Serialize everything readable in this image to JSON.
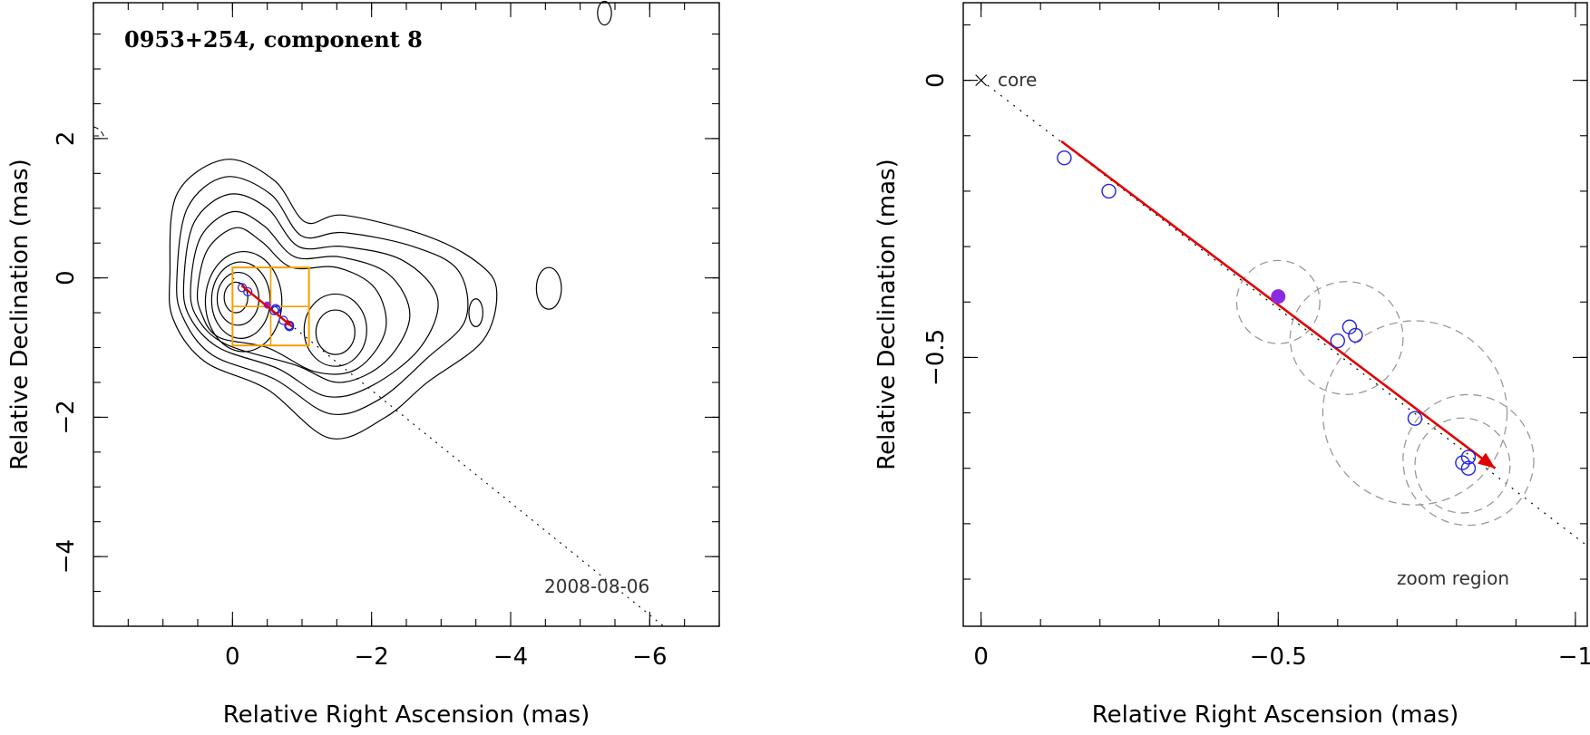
{
  "chart_data": [
    {
      "type": "contour",
      "title": "0953+254, component 8",
      "xlabel": "Relative Right Ascension (mas)",
      "ylabel": "Relative Declination (mas)",
      "xlim": [
        2.0,
        -7.0
      ],
      "ylim": [
        -5.0,
        3.95
      ],
      "x_ticks": [
        0,
        -2,
        -4,
        -6
      ],
      "y_ticks": [
        2,
        0,
        -2,
        -4
      ],
      "epoch_label": "2008-08-06",
      "contours": [
        {
          "cx": -0.05,
          "cy": -0.28,
          "rx": 0.17,
          "ry": 0.22
        },
        {
          "cx": -0.08,
          "cy": -0.3,
          "rx": 0.3,
          "ry": 0.38
        },
        {
          "cx": -0.12,
          "cy": -0.32,
          "rx": 0.42,
          "ry": 0.55
        },
        {
          "cx": -0.16,
          "cy": -0.34,
          "rx": 0.55,
          "ry": 0.72
        },
        {
          "cx": -1.48,
          "cy": -0.78,
          "rx": 0.28,
          "ry": 0.32
        },
        {
          "cx": -1.48,
          "cy": -0.75,
          "rx": 0.45,
          "ry": 0.52
        },
        {
          "cx": -3.5,
          "cy": -0.5,
          "rx": 0.1,
          "ry": 0.2
        },
        {
          "cx": -4.55,
          "cy": -0.15,
          "rx": 0.18,
          "ry": 0.3
        },
        {
          "cx": -5.35,
          "cy": 3.8,
          "rx": 0.1,
          "ry": 0.17
        }
      ],
      "boxes": [
        [
          0,
          0.15,
          -1.1,
          -0.97
        ]
      ],
      "arrow": {
        "from": [
          -0.13,
          -0.11
        ],
        "to": [
          -0.86,
          -0.7
        ]
      },
      "points": [
        [
          -0.14,
          -0.14
        ],
        [
          -0.22,
          -0.2
        ],
        [
          -0.6,
          -0.47
        ],
        [
          -0.62,
          -0.44
        ],
        [
          -0.63,
          -0.46
        ],
        [
          -0.73,
          -0.61
        ],
        [
          -0.81,
          -0.69
        ],
        [
          -0.82,
          -0.68
        ],
        [
          -0.82,
          -0.7
        ]
      ],
      "filled_point": [
        -0.5,
        -0.39
      ]
    },
    {
      "type": "scatter",
      "xlabel": "Relative Right Ascension (mas)",
      "ylabel": "Relative Declination (mas)",
      "xlim": [
        0.03,
        -1.02
      ],
      "ylim": [
        -0.985,
        0.14
      ],
      "x_ticks": [
        0,
        -0.5,
        -1
      ],
      "x_tick_labels": [
        "0",
        "−0.5",
        "−1"
      ],
      "y_ticks": [
        0,
        -0.5
      ],
      "y_tick_labels": [
        "0",
        "−0.5"
      ],
      "core_label": "core",
      "zoom_label": "zoom region",
      "points": [
        [
          -0.14,
          -0.14
        ],
        [
          -0.215,
          -0.2
        ],
        [
          -0.6,
          -0.47
        ],
        [
          -0.62,
          -0.445
        ],
        [
          -0.63,
          -0.46
        ],
        [
          -0.73,
          -0.61
        ],
        [
          -0.81,
          -0.69
        ],
        [
          -0.82,
          -0.68
        ],
        [
          -0.82,
          -0.7
        ]
      ],
      "filled_point": [
        -0.5,
        -0.39
      ],
      "arrow": {
        "from": [
          -0.135,
          -0.11
        ],
        "to": [
          -0.865,
          -0.7
        ]
      },
      "circles": [
        {
          "cx": -0.5,
          "cy": -0.4,
          "r": 0.07
        },
        {
          "cx": -0.615,
          "cy": -0.465,
          "r": 0.095
        },
        {
          "cx": -0.73,
          "cy": -0.6,
          "r": 0.155
        },
        {
          "cx": -0.81,
          "cy": -0.695,
          "r": 0.08
        },
        {
          "cx": -0.82,
          "cy": -0.685,
          "r": 0.11
        }
      ],
      "colors": {
        "arrow": "#e00000",
        "point": "#2222dd",
        "filled": "#8a2be2",
        "box": "#f5a000"
      }
    }
  ]
}
